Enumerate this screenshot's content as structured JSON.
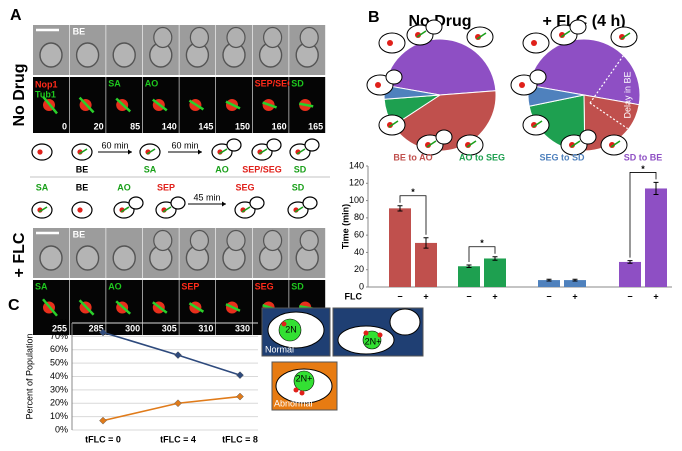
{
  "panel_labels": [
    "A",
    "B",
    "C"
  ],
  "panel_a": {
    "rows": [
      "No Drug",
      "+ FLC"
    ],
    "top_tile_labels": [
      "BE",
      "BE"
    ],
    "channels": [
      "Nop1",
      "Tub1"
    ],
    "nodrug_fluor_labels": [
      null,
      null,
      "SA",
      "AO",
      null,
      null,
      "SEP/SEG",
      "SD"
    ],
    "nodrug_fluor_colors": [
      "#1ec81e",
      "#1ec81e",
      "#1ec81e",
      "#1ec81e",
      "#1ec81e",
      "#1ec81e",
      "#ff2a1a",
      "#1ec81e"
    ],
    "nodrug_times": [
      0,
      20,
      85,
      140,
      145,
      150,
      160,
      165
    ],
    "nodrug_cartoon": {
      "labels": [
        null,
        "BE",
        "SA",
        "AO",
        "SEP/SEG",
        "SD"
      ],
      "colors": [
        "#000000",
        "#000000",
        "#1aa01a",
        "#1aa01a",
        "#e0201a",
        "#1aa01a"
      ],
      "arrows": [
        "60 min",
        "60 min"
      ]
    },
    "flc_cartoon": {
      "labels": [
        "SA",
        "BE",
        "AO",
        "SEP",
        "SEG",
        "SD"
      ],
      "colors": [
        "#1aa01a",
        "#000000",
        "#1aa01a",
        "#e0201a",
        "#e0201a",
        "#1aa01a"
      ],
      "arrows": [
        "45 min"
      ]
    },
    "flc_fluor_labels": [
      "SA",
      null,
      "AO",
      null,
      "SEP",
      null,
      "SEG",
      "SD"
    ],
    "flc_fluor_colors": [
      "#1ec81e",
      "#1ec81e",
      "#1ec81e",
      "#1ec81e",
      "#ff2a1a",
      "#1ec81e",
      "#ff2a1a",
      "#1ec81e"
    ],
    "flc_times": [
      255,
      285,
      300,
      305,
      310,
      330,
      355,
      360
    ]
  },
  "panel_c_diagrams": {
    "normal": "Normal",
    "abnormal": "Abnormal",
    "cells": [
      "2N",
      "2N+",
      "2N+"
    ]
  },
  "chart_data": [
    {
      "type": "pie",
      "title": "No Drug",
      "values": [
        46,
        42,
        8,
        4
      ],
      "colors": [
        "#8e4fc4",
        "#c0504d",
        "#1ea050",
        "#4f81bd"
      ]
    },
    {
      "type": "pie",
      "title": "+ FLC (4 h)",
      "annotation": "Delay in BE",
      "values": [
        50,
        22,
        22,
        6
      ],
      "colors": [
        "#8e4fc4",
        "#c0504d",
        "#1ea050",
        "#4f81bd"
      ]
    },
    {
      "type": "bar",
      "categories": [
        "BE to AO",
        "AO to SEG",
        "SEG to SD",
        "SD to BE"
      ],
      "colors": [
        "#c0504d",
        "#1ea050",
        "#4f81bd",
        "#8e4fc4"
      ],
      "series": [
        {
          "name": "−",
          "values": [
            91,
            24,
            8,
            29
          ],
          "errors": [
            3,
            1.5,
            1,
            1.5
          ]
        },
        {
          "name": "+",
          "values": [
            51,
            33,
            8,
            114
          ],
          "errors": [
            6,
            2,
            1,
            7
          ]
        }
      ],
      "significance": [
        "*",
        "*",
        null,
        "*"
      ],
      "x_label": "FLC",
      "y_label": "Time (min)",
      "ylim": [
        0,
        140
      ],
      "yticks": [
        0,
        20,
        40,
        60,
        80,
        100,
        120,
        140
      ]
    },
    {
      "type": "line",
      "categories": [
        "tFLC = 0",
        "tFLC = 4",
        "tFLC = 8"
      ],
      "series": [
        {
          "color": "#2e4a7d",
          "values": [
            73,
            56,
            41
          ]
        },
        {
          "color": "#e07b1a",
          "values": [
            7,
            20,
            25
          ]
        }
      ],
      "y_label": "Percent of Population",
      "ylim": [
        0,
        80
      ],
      "grid": true,
      "yticks": [
        {
          "value": 0,
          "label": "0%"
        },
        {
          "value": 10,
          "label": "10%"
        },
        {
          "value": 20,
          "label": "20%"
        },
        {
          "value": 30,
          "label": "30%"
        },
        {
          "value": 40,
          "label": "40%"
        },
        {
          "value": 50,
          "label": "50%"
        },
        {
          "value": 60,
          "label": "60%"
        },
        {
          "value": 70,
          "label": "70%"
        },
        {
          "value": 80,
          "label": "80%"
        }
      ]
    }
  ]
}
